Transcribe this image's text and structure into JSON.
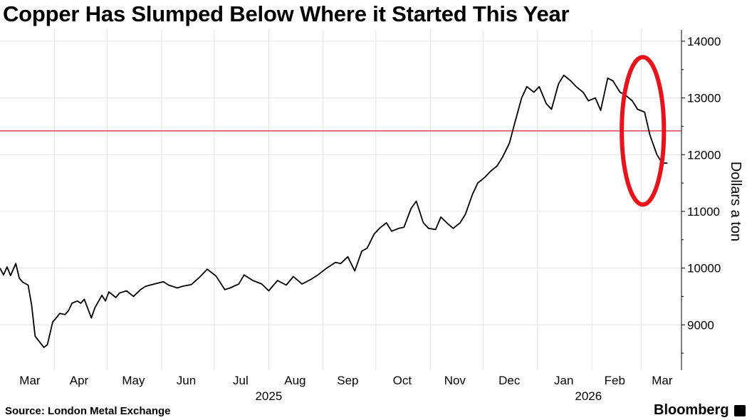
{
  "title": "Copper Has Slumped Below Where it Started This Year",
  "source": "Source:  London Metal Exchange",
  "brand": "Bloomberg",
  "brand_icon": "bloomberg-terminal-icon",
  "colors": {
    "line": "#000000",
    "reference_line": "#e0555f",
    "highlight_circle": "#e8141c",
    "grid": "#e3e3e3"
  },
  "chart_data": {
    "type": "line",
    "title": "Copper Has Slumped Below Where it Started This Year",
    "ylabel": "Dollars a ton",
    "y_axis_side": "right",
    "ylim": [
      8200,
      14200
    ],
    "yticks": [
      9000,
      10000,
      11000,
      12000,
      13000,
      14000
    ],
    "xlim": [
      "2025-03-01",
      "2026-03-24"
    ],
    "x_ticks": [
      {
        "label": "Mar",
        "date": "2025-03-18"
      },
      {
        "label": "Apr",
        "date": "2025-04-15"
      },
      {
        "label": "May",
        "date": "2025-05-16"
      },
      {
        "label": "Jun",
        "date": "2025-06-15"
      },
      {
        "label": "Jul",
        "date": "2025-07-16"
      },
      {
        "label": "Aug",
        "date": "2025-08-16"
      },
      {
        "label": "Sep",
        "date": "2025-09-15"
      },
      {
        "label": "Oct",
        "date": "2025-10-16"
      },
      {
        "label": "Nov",
        "date": "2025-11-15"
      },
      {
        "label": "Dec",
        "date": "2025-12-16"
      },
      {
        "label": "Jan",
        "date": "2026-01-16"
      },
      {
        "label": "Feb",
        "date": "2026-02-14"
      },
      {
        "label": "Mar",
        "date": "2026-03-13"
      }
    ],
    "x_gridlines": [
      "2025-03-01",
      "2025-04-01",
      "2025-05-01",
      "2025-06-01",
      "2025-07-01",
      "2025-08-01",
      "2025-09-01",
      "2025-10-01",
      "2025-11-01",
      "2025-12-01",
      "2026-01-01",
      "2026-02-01",
      "2026-03-01"
    ],
    "year_labels": [
      {
        "label": "2025",
        "date": "2025-08-01"
      },
      {
        "label": "2026",
        "date": "2026-01-30"
      }
    ],
    "grid": true,
    "reference_line": {
      "y": 12420
    },
    "highlight_circle": {
      "x_center": "2026-03-02",
      "y_center": 12420,
      "x_radius_days": 12,
      "y_radius": 1300
    },
    "series": [
      {
        "x": [
          "2025-03-01",
          "2025-03-03",
          "2025-03-05",
          "2025-03-07",
          "2025-03-10",
          "2025-03-12",
          "2025-03-14",
          "2025-03-17",
          "2025-03-19",
          "2025-03-21",
          "2025-03-24",
          "2025-03-26",
          "2025-03-28",
          "2025-03-31",
          "2025-04-02",
          "2025-04-04",
          "2025-04-07",
          "2025-04-09",
          "2025-04-11",
          "2025-04-14",
          "2025-04-16",
          "2025-04-18",
          "2025-04-22",
          "2025-04-24",
          "2025-04-28",
          "2025-04-30",
          "2025-05-02",
          "2025-05-06",
          "2025-05-08",
          "2025-05-12",
          "2025-05-14",
          "2025-05-16",
          "2025-05-20",
          "2025-05-23",
          "2025-05-28",
          "2025-06-02",
          "2025-06-05",
          "2025-06-10",
          "2025-06-13",
          "2025-06-18",
          "2025-06-23",
          "2025-06-27",
          "2025-07-02",
          "2025-07-07",
          "2025-07-10",
          "2025-07-15",
          "2025-07-18",
          "2025-07-23",
          "2025-07-28",
          "2025-08-01",
          "2025-08-06",
          "2025-08-11",
          "2025-08-15",
          "2025-08-20",
          "2025-08-25",
          "2025-08-29",
          "2025-09-03",
          "2025-09-08",
          "2025-09-11",
          "2025-09-15",
          "2025-09-19",
          "2025-09-23",
          "2025-09-26",
          "2025-09-30",
          "2025-10-03",
          "2025-10-07",
          "2025-10-10",
          "2025-10-14",
          "2025-10-17",
          "2025-10-21",
          "2025-10-24",
          "2025-10-28",
          "2025-10-31",
          "2025-11-04",
          "2025-11-07",
          "2025-11-11",
          "2025-11-14",
          "2025-11-18",
          "2025-11-21",
          "2025-11-25",
          "2025-11-28",
          "2025-12-02",
          "2025-12-05",
          "2025-12-09",
          "2025-12-12",
          "2025-12-16",
          "2025-12-19",
          "2025-12-23",
          "2025-12-26",
          "2025-12-30",
          "2026-01-02",
          "2026-01-06",
          "2026-01-09",
          "2026-01-13",
          "2026-01-16",
          "2026-01-20",
          "2026-01-23",
          "2026-01-27",
          "2026-01-30",
          "2026-02-03",
          "2026-02-06",
          "2026-02-10",
          "2026-02-13",
          "2026-02-17",
          "2026-02-20",
          "2026-02-24",
          "2026-02-27",
          "2026-03-03",
          "2026-03-06",
          "2026-03-10",
          "2026-03-13",
          "2026-03-16"
        ],
        "values": [
          10000,
          9880,
          10020,
          9870,
          10080,
          9820,
          9750,
          9700,
          9350,
          8800,
          8680,
          8600,
          8650,
          9050,
          9120,
          9200,
          9180,
          9250,
          9380,
          9420,
          9380,
          9450,
          9120,
          9300,
          9520,
          9420,
          9580,
          9480,
          9560,
          9600,
          9550,
          9500,
          9620,
          9680,
          9720,
          9760,
          9700,
          9650,
          9680,
          9710,
          9850,
          9980,
          9860,
          9620,
          9650,
          9720,
          9880,
          9780,
          9720,
          9600,
          9780,
          9700,
          9850,
          9720,
          9800,
          9880,
          10000,
          10100,
          10080,
          10200,
          9950,
          10300,
          10350,
          10600,
          10700,
          10800,
          10650,
          10700,
          10720,
          11050,
          11180,
          10800,
          10700,
          10680,
          10900,
          10780,
          10700,
          10800,
          10950,
          11300,
          11500,
          11600,
          11700,
          11800,
          11950,
          12200,
          12550,
          13000,
          13200,
          13100,
          13200,
          12900,
          12800,
          13250,
          13400,
          13300,
          13200,
          13100,
          12950,
          13000,
          12780,
          13350,
          13300,
          13100,
          13050,
          12950,
          12800,
          12750,
          12350,
          12000,
          11850,
          11850
        ]
      }
    ]
  }
}
